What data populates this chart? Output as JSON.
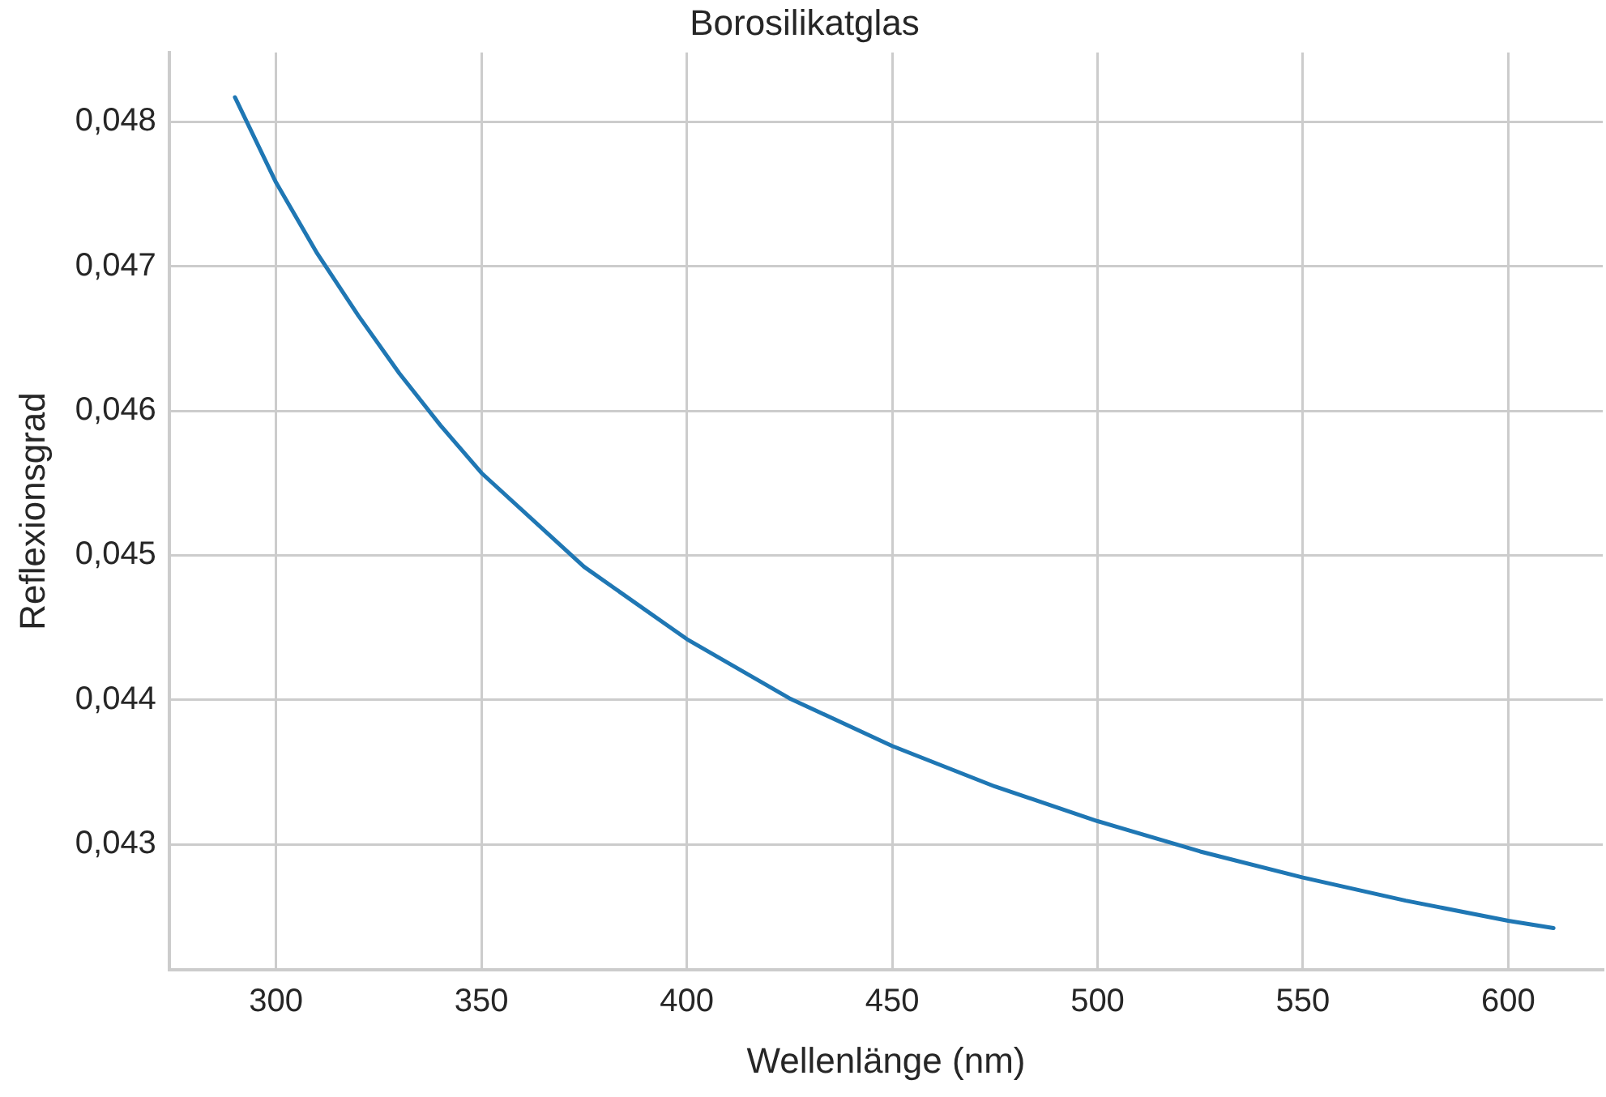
{
  "chart_data": {
    "type": "line",
    "title": "Borosilikatglas",
    "xlabel": "Wellenlänge (nm)",
    "ylabel": "Reflexionsgrad",
    "x": [
      290,
      300,
      310,
      320,
      330,
      340,
      350,
      375,
      400,
      425,
      450,
      475,
      500,
      525,
      550,
      575,
      600,
      611
    ],
    "series": [
      {
        "color": "#1f77b4",
        "values": [
          0.04817,
          0.04758,
          0.04709,
          0.04666,
          0.04626,
          0.0459,
          0.04557,
          0.04492,
          0.04442,
          0.04401,
          0.04368,
          0.0434,
          0.04316,
          0.04295,
          0.04277,
          0.04261,
          0.04247,
          0.04242
        ]
      }
    ],
    "xlim": [
      274,
      623
    ],
    "ylim": [
      0.04213,
      0.04848
    ],
    "xticks": [
      300,
      350,
      400,
      450,
      500,
      550,
      600
    ],
    "yticks": [
      {
        "value": 0.043,
        "label": "0,043"
      },
      {
        "value": 0.044,
        "label": "0,044"
      },
      {
        "value": 0.045,
        "label": "0,045"
      },
      {
        "value": 0.046,
        "label": "0,046"
      },
      {
        "value": 0.047,
        "label": "0,047"
      },
      {
        "value": 0.048,
        "label": "0,048"
      }
    ],
    "grid": true,
    "marker": "none",
    "line_style": "solid"
  }
}
